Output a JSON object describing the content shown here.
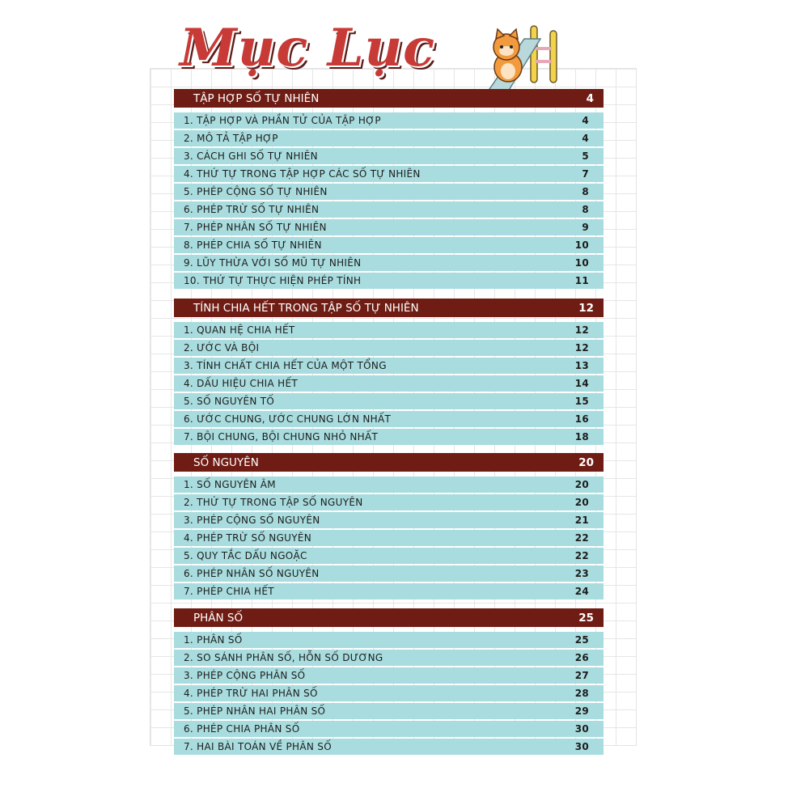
{
  "title": "Mục Lục",
  "colors": {
    "header": "#6f1d14",
    "row": "#a9dcde",
    "title": "#c73a36"
  },
  "sections": [
    {
      "title": "TẬP HỢP SỐ TỰ NHIÊN",
      "page": "4",
      "items": [
        {
          "label": "1. TẬP HỢP VÀ PHẦN TỬ CỦA TẬP HỢP",
          "page": "4"
        },
        {
          "label": "2. MÔ TẢ TẬP HỢP",
          "page": "4"
        },
        {
          "label": "3. CÁCH GHI SỐ TỰ NHIÊN",
          "page": "5"
        },
        {
          "label": "4. THỨ TỰ TRONG TẬP HỢP CÁC SỐ TỰ NHIÊN",
          "page": "7"
        },
        {
          "label": "5. PHÉP CỘNG SỐ TỰ NHIÊN",
          "page": "8"
        },
        {
          "label": "6. PHÉP TRỪ SỐ TỰ NHIÊN",
          "page": "8"
        },
        {
          "label": "7. PHÉP NHÂN SỐ TỰ NHIÊN",
          "page": "9"
        },
        {
          "label": "8. PHÉP CHIA SỐ TỰ NHIÊN",
          "page": "10"
        },
        {
          "label": "9. LŨY THỪA VỚI SỐ MŨ TỰ NHIÊN",
          "page": "10"
        },
        {
          "label": "10. THỨ TỰ THỰC HIỆN PHÉP TÍNH",
          "page": "11"
        }
      ]
    },
    {
      "title": "TÍNH CHIA HẾT TRONG TẬP SỐ TỰ NHIÊN",
      "page": "12",
      "items": [
        {
          "label": "1. QUAN HỆ CHIA HẾT",
          "page": "12"
        },
        {
          "label": "2. ƯỚC VÀ BỘI",
          "page": "12"
        },
        {
          "label": "3. TÍNH CHẤT CHIA HẾT CỦA MỘT TỔNG",
          "page": "13"
        },
        {
          "label": "4. DẤU HIỆU CHIA HẾT",
          "page": "14"
        },
        {
          "label": "5. SỐ NGUYÊN TỐ",
          "page": "15"
        },
        {
          "label": "6. ƯỚC CHUNG, ƯỚC CHUNG LỚN NHẤT",
          "page": "16"
        },
        {
          "label": "7. BỘI CHUNG, BỘI CHUNG NHỎ NHẤT",
          "page": "18"
        }
      ]
    },
    {
      "title": "SỐ NGUYÊN",
      "page": "20",
      "items": [
        {
          "label": "1. SỐ NGUYÊN ÂM",
          "page": "20"
        },
        {
          "label": "2. THỨ TỰ TRONG TẬP SỐ NGUYÊN",
          "page": "20"
        },
        {
          "label": "3. PHÉP CỘNG SỐ NGUYÊN",
          "page": "21"
        },
        {
          "label": "4. PHÉP TRỪ SỐ NGUYÊN",
          "page": "22"
        },
        {
          "label": "5. QUY TẮC DẤU NGOẶC",
          "page": "22"
        },
        {
          "label": "6. PHÉP NHÂN SỐ NGUYÊN",
          "page": "23"
        },
        {
          "label": "7. PHÉP CHIA HẾT",
          "page": "24"
        }
      ]
    },
    {
      "title": "PHÂN SỐ",
      "page": "25",
      "items": [
        {
          "label": "1. PHÂN SỐ",
          "page": "25"
        },
        {
          "label": "2. SO SÁNH PHÂN SỐ, HỖN SỐ DƯƠNG",
          "page": "26"
        },
        {
          "label": "3. PHÉP CỘNG PHÂN SỐ",
          "page": "27"
        },
        {
          "label": "4. PHÉP TRỪ HAI PHÂN SỐ",
          "page": "28"
        },
        {
          "label": "5. PHÉP NHÂN HAI PHÂN SỐ",
          "page": "29"
        },
        {
          "label": "6. PHÉP CHIA PHÂN SỐ",
          "page": "30"
        },
        {
          "label": "7. HAI BÀI TOÁN VỀ PHÂN SỐ",
          "page": "30"
        }
      ]
    }
  ]
}
